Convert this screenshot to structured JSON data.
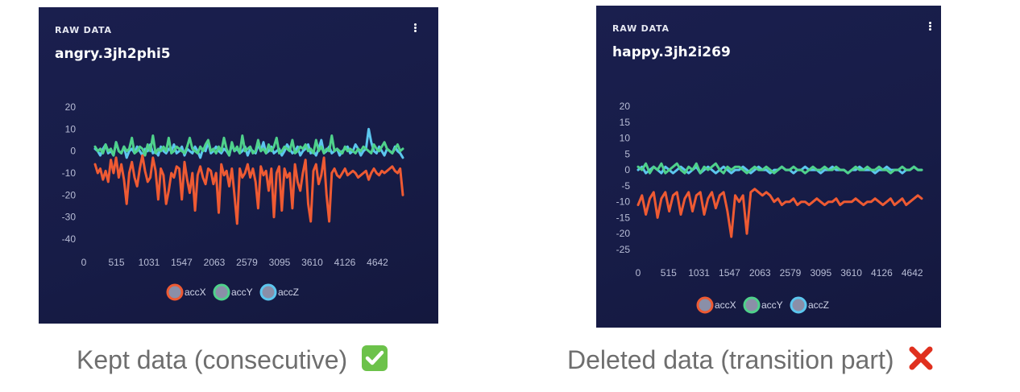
{
  "panels": [
    {
      "section_label": "RAW DATA",
      "title": "angry.3jh2phi5",
      "caption": "Kept data (consecutive)",
      "caption_badge": "check-mark-icon",
      "chart_data": {
        "type": "line",
        "x_ticks": [
          "0",
          "515",
          "1031",
          "1547",
          "2063",
          "2579",
          "3095",
          "3610",
          "4126",
          "4642"
        ],
        "y_ticks": [
          "20",
          "10",
          "0",
          "-10",
          "-20",
          "-30",
          "-40"
        ],
        "ylim": [
          -40,
          20
        ],
        "xlim": [
          0,
          5150
        ],
        "legend_position": "bottom-center",
        "series": [
          {
            "name": "accX",
            "color": "#ee5a33",
            "values": [
              -6,
              -10,
              -8,
              -13,
              -9,
              -14,
              -4,
              -10,
              -3,
              -12,
              -6,
              -13,
              -24,
              -10,
              -5,
              -12,
              -16,
              -8,
              -2,
              -9,
              -14,
              -12,
              -3,
              -9,
              -22,
              -8,
              -11,
              -24,
              -18,
              -10,
              -12,
              -7,
              -8,
              -22,
              -5,
              -13,
              -19,
              -10,
              -27,
              -11,
              -7,
              -12,
              -15,
              -8,
              -9,
              -15,
              -10,
              -28,
              -6,
              -11,
              -9,
              -16,
              -8,
              -20,
              -33,
              -8,
              -12,
              -10,
              -6,
              -12,
              -8,
              -14,
              -26,
              -7,
              -11,
              -9,
              -18,
              -8,
              -30,
              -10,
              -7,
              -27,
              -8,
              -12,
              -10,
              -26,
              -6,
              -14,
              -18,
              -10,
              -4,
              -24,
              -32,
              -9,
              -6,
              -15,
              -11,
              -3,
              -20,
              -32,
              -10,
              -8,
              -11,
              -12,
              -10,
              -8,
              -11,
              -10,
              -9,
              -10,
              -12,
              -11,
              -10,
              -9,
              -13,
              -10,
              -8,
              -10,
              -11,
              -9,
              -10,
              -9,
              -8,
              -7,
              -9,
              -10,
              -8,
              -20
            ]
          },
          {
            "name": "accY",
            "color": "#4fd18b",
            "values": [
              2,
              0,
              1,
              -1,
              3,
              0,
              1,
              -2,
              4,
              0,
              -1,
              2,
              0,
              1,
              6,
              -1,
              0,
              2,
              1,
              -2,
              3,
              0,
              7,
              -1,
              1,
              0,
              2,
              0,
              6,
              -1,
              0,
              2,
              1,
              0,
              -1,
              2,
              6,
              1,
              0,
              -1,
              2,
              0,
              3,
              5,
              0,
              1,
              -1,
              2,
              0,
              6,
              1,
              -2,
              4,
              0,
              2,
              -1,
              7,
              0,
              1,
              2,
              -1,
              0,
              5,
              0,
              1,
              -1,
              3,
              0,
              2,
              6,
              -1,
              0,
              2,
              1,
              0,
              5,
              -1,
              0,
              2,
              1,
              3,
              0,
              1,
              -1,
              5,
              0,
              2,
              -1,
              1,
              0,
              7,
              0,
              1,
              0,
              -1,
              2,
              0,
              1,
              0,
              -1,
              1,
              0,
              2,
              1,
              0,
              -1,
              3,
              1,
              0,
              2,
              4,
              1,
              0,
              -1,
              1,
              3,
              0,
              1
            ]
          },
          {
            "name": "accZ",
            "color": "#5cc6ee",
            "values": [
              1,
              0,
              -2,
              1,
              3,
              -1,
              0,
              -2,
              4,
              0,
              -1,
              2,
              -3,
              0,
              1,
              -1,
              2,
              0,
              -2,
              1,
              0,
              3,
              -1,
              0,
              -2,
              2,
              0,
              -1,
              1,
              0,
              3,
              -1,
              0,
              2,
              -2,
              1,
              0,
              -1,
              2,
              0,
              -3,
              1,
              0,
              4,
              -1,
              0,
              2,
              0,
              -1,
              1,
              0,
              -2,
              3,
              0,
              1,
              -1,
              0,
              2,
              -2,
              1,
              0,
              -1,
              3,
              0,
              4,
              -1,
              0,
              2,
              -1,
              0,
              1,
              -2,
              0,
              3,
              1,
              -1,
              0,
              2,
              -2,
              0,
              1,
              3,
              -1,
              0,
              -2,
              1,
              5,
              -1,
              0,
              2,
              -1,
              0,
              1,
              -2,
              0,
              1,
              2,
              -1,
              0,
              3,
              1,
              -2,
              0,
              1,
              10,
              4,
              0,
              -1,
              2,
              0,
              -2,
              1,
              0,
              -1,
              2,
              0,
              -1,
              -3
            ]
          }
        ]
      }
    },
    {
      "section_label": "RAW DATA",
      "title": "happy.3jh2i269",
      "caption": "Deleted data (transition part)",
      "caption_badge": "cross-mark-icon",
      "chart_data": {
        "type": "line",
        "x_ticks": [
          "0",
          "515",
          "1031",
          "1547",
          "2063",
          "2579",
          "3095",
          "3610",
          "4126",
          "4642"
        ],
        "y_ticks": [
          "20",
          "15",
          "10",
          "5",
          "0",
          "-5",
          "-10",
          "-15",
          "-20",
          "-25"
        ],
        "ylim": [
          -25,
          20
        ],
        "xlim": [
          0,
          5150
        ],
        "legend_position": "bottom-center",
        "series": [
          {
            "name": "accX",
            "color": "#ee5a33",
            "values": [
              -11,
              -8,
              -14,
              -9,
              -7,
              -15,
              -9,
              -7,
              -13,
              -8,
              -7,
              -14,
              -9,
              -7,
              -13,
              -8,
              -7,
              -14,
              -9,
              -7,
              -12,
              -8,
              -7,
              -13,
              -21,
              -8,
              -10,
              -8,
              -20,
              -7,
              -6,
              -7,
              -8,
              -7,
              -8,
              -10,
              -9,
              -11,
              -10,
              -10,
              -9,
              -11,
              -10,
              -10,
              -11,
              -10,
              -9,
              -10,
              -11,
              -10,
              -10,
              -9,
              -11,
              -10,
              -10,
              -10,
              -9,
              -10,
              -11,
              -10,
              -10,
              -9,
              -10,
              -11,
              -10,
              -9,
              -11,
              -10,
              -9,
              -11,
              -10,
              -9,
              -8,
              -9
            ]
          },
          {
            "name": "accY",
            "color": "#4fd18b",
            "values": [
              1,
              0,
              2,
              -1,
              1,
              0,
              2,
              -1,
              0,
              1,
              2,
              0,
              -1,
              1,
              0,
              2,
              -1,
              1,
              0,
              1,
              2,
              0,
              -1,
              1,
              0,
              1,
              1,
              0,
              -1,
              0,
              1,
              0,
              0,
              1,
              0,
              -1,
              0,
              1,
              0,
              0,
              1,
              0,
              0,
              -1,
              0,
              1,
              0,
              0,
              1,
              0,
              0,
              1,
              0,
              0,
              -1,
              0,
              1,
              0,
              0,
              1,
              0,
              0,
              1,
              0,
              0,
              -1,
              0,
              0,
              1,
              0,
              0,
              1,
              0,
              0
            ]
          },
          {
            "name": "accZ",
            "color": "#5cc6ee",
            "values": [
              0,
              1,
              -1,
              0,
              1,
              0,
              -1,
              1,
              0,
              -1,
              0,
              1,
              0,
              -1,
              0,
              1,
              -1,
              0,
              1,
              0,
              -1,
              0,
              1,
              0,
              -1,
              0,
              0,
              1,
              0,
              -1,
              0,
              1,
              0,
              0,
              -1,
              0,
              0,
              1,
              0,
              0,
              -1,
              0,
              0,
              1,
              0,
              0,
              0,
              -1,
              0,
              0,
              1,
              0,
              0,
              0,
              -1,
              0,
              0,
              1,
              0,
              0,
              0,
              -1,
              0,
              0,
              1,
              0,
              0,
              0,
              -1,
              0,
              0,
              1,
              0,
              0
            ]
          }
        ]
      }
    }
  ],
  "colors": {
    "panel_bg": "#191e4a",
    "tick_text": "#b8bdd6",
    "caption_text": "#6e6e6e",
    "check_badge": "#6cc24a",
    "cross_badge": "#e0301e"
  }
}
